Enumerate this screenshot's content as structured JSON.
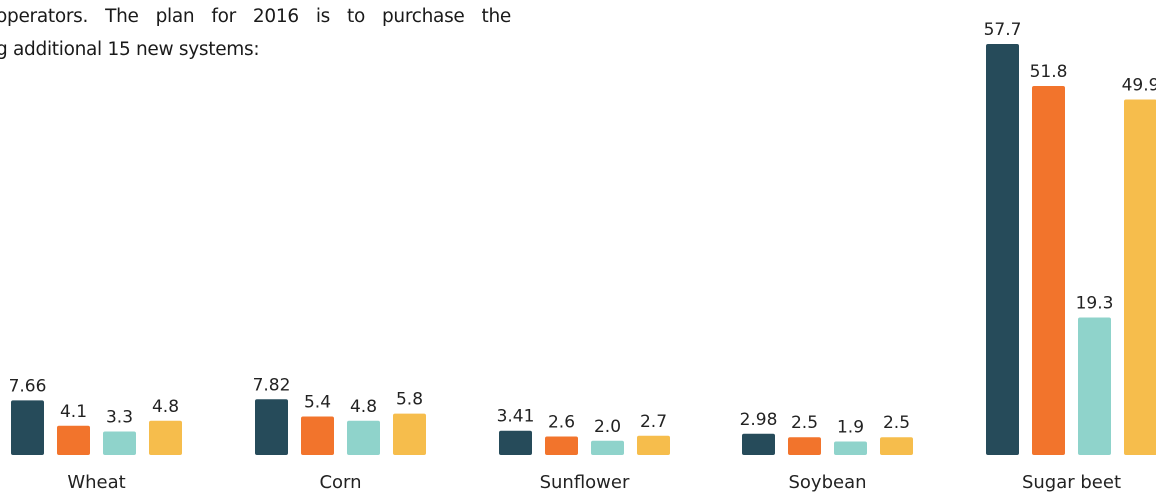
{
  "intro": {
    "line1": "operators. The plan for 2016 is to purchase the",
    "line2": "g additional 15 new systems:"
  },
  "chart_data": {
    "type": "bar",
    "categories": [
      "Wheat",
      "Corn",
      "Sunflower",
      "Soybean",
      "Sugar beet"
    ],
    "series": [
      {
        "values": [
          7.66,
          7.82,
          3.41,
          2.98,
          57.7
        ],
        "labels": [
          "7.66",
          "7.82",
          "3.41",
          "2.98",
          "57.7"
        ],
        "color": "#264b5a"
      },
      {
        "values": [
          4.1,
          5.4,
          2.6,
          2.5,
          51.8
        ],
        "labels": [
          "4.1",
          "5.4",
          "2.6",
          "2.5",
          "51.8"
        ],
        "color": "#f2742c"
      },
      {
        "values": [
          3.3,
          4.8,
          2.0,
          1.9,
          19.3
        ],
        "labels": [
          "3.3",
          "4.8",
          "2.0",
          "1.9",
          "19.3"
        ],
        "color": "#8fd3cb"
      },
      {
        "values": [
          4.8,
          5.8,
          2.7,
          2.5,
          49.9
        ],
        "labels": [
          "4.8",
          "5.8",
          "2.7",
          "2.5",
          "49.9"
        ],
        "color": "#f6bd4c"
      }
    ],
    "ylim": [
      0,
      57.7
    ],
    "grid": false,
    "legend": "none"
  }
}
